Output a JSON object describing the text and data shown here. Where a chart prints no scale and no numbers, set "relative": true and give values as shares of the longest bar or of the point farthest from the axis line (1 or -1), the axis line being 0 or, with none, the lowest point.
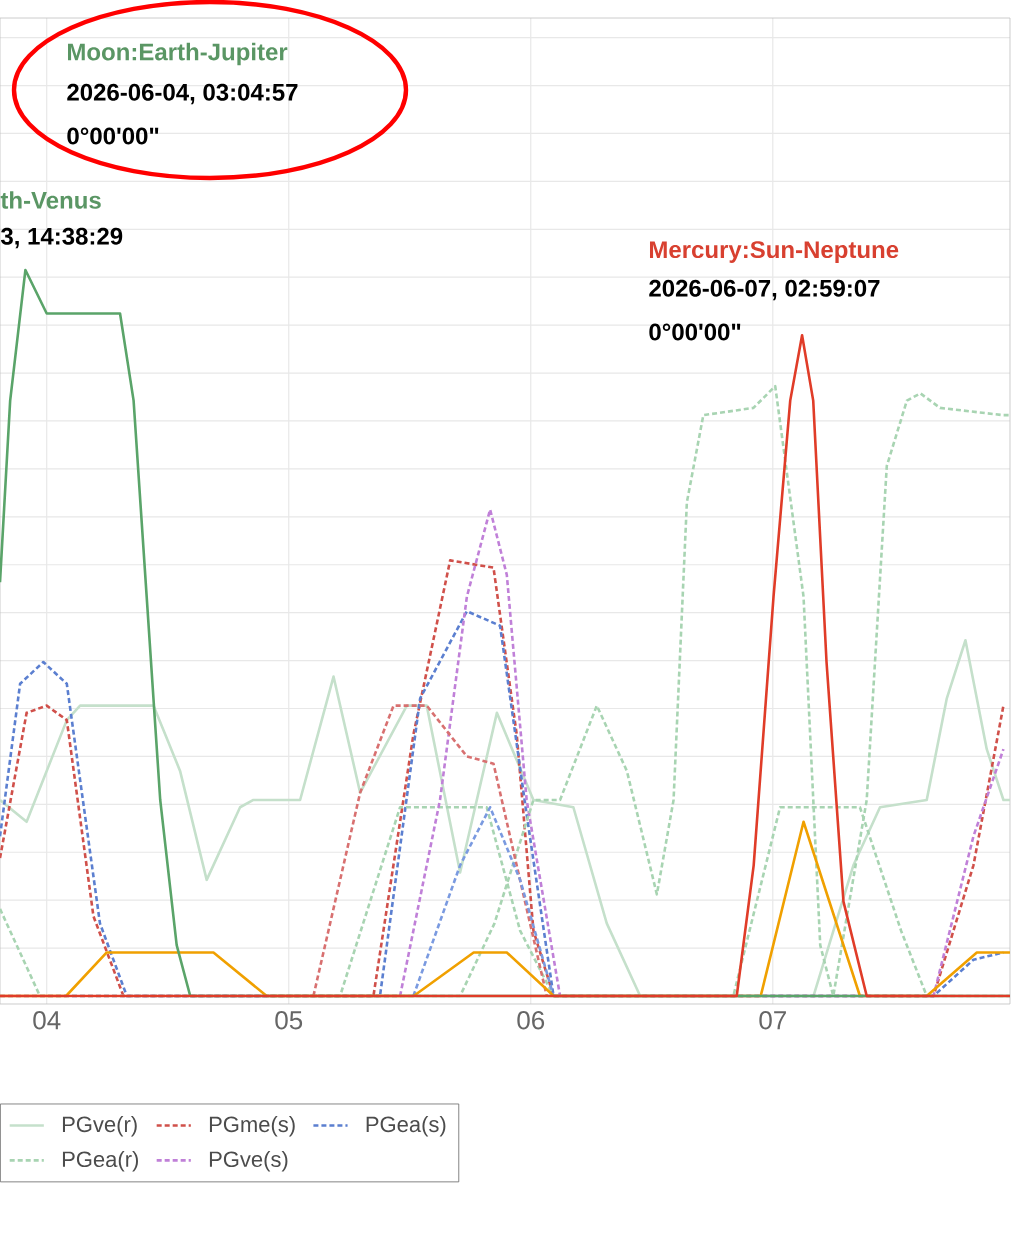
{
  "chart_data": {
    "type": "line",
    "relative": true,
    "xlim": [
      3.807,
      7.98
    ],
    "xticks": [
      {
        "value": 4,
        "label": "04"
      },
      {
        "value": 5,
        "label": "05"
      },
      {
        "value": 6,
        "label": "06"
      },
      {
        "value": 7,
        "label": "07"
      }
    ],
    "tick_labels": "x",
    "grid": true,
    "legend": "bottom left",
    "marker": "none",
    "annotations": [
      "Moon:Earth-Jupiter",
      "2026-06-04, 03:04:57",
      "0°00'00\"",
      "th-Venus",
      "3, 14:38:29",
      "Mercury:Sun-Neptune",
      "2026-06-07, 02:59:07",
      "0°00'00\""
    ],
    "series": [
      {
        "name": "PGve(r)",
        "color": "#c5e0cb",
        "line_style": "solid",
        "x": [
          3.807,
          3.917,
          4.083,
          4.138,
          4.441,
          4.551,
          4.661,
          4.799,
          4.854,
          5.047,
          5.185,
          5.295,
          5.488,
          5.57,
          5.708,
          5.86,
          6.011,
          6.176,
          6.314,
          6.452,
          7.168,
          7.333,
          7.443,
          7.636,
          7.719,
          7.796,
          7.884,
          7.953,
          7.98
        ],
        "values": [
          0.27,
          0.24,
          0.38,
          0.4,
          0.4,
          0.31,
          0.16,
          0.26,
          0.27,
          0.27,
          0.44,
          0.28,
          0.4,
          0.4,
          0.17,
          0.39,
          0.27,
          0.26,
          0.1,
          0,
          0,
          0.18,
          0.26,
          0.27,
          0.41,
          0.49,
          0.34,
          0.27,
          0.27
        ]
      },
      {
        "name": "PGme(s)",
        "color": "#d0504a",
        "line_style": "dashed",
        "x": [
          3.807,
          3.917,
          4.0,
          4.083,
          4.193,
          4.317,
          5.35,
          5.515,
          5.667,
          5.846,
          5.942,
          6.011,
          6.094,
          7.664,
          7.829,
          7.953
        ],
        "values": [
          0.19,
          0.39,
          0.4,
          0.38,
          0.11,
          0,
          0,
          0.36,
          0.6,
          0.59,
          0.36,
          0.09,
          0,
          0,
          0.18,
          0.4
        ]
      },
      {
        "name": "PGea(s)",
        "color": "#5b7fd0",
        "line_style": "dashed",
        "x": [
          3.807,
          3.89,
          3.986,
          4.083,
          4.22,
          4.331,
          5.377,
          5.543,
          5.736,
          5.873,
          5.983,
          6.094,
          7.664,
          7.829,
          7.953
        ],
        "values": [
          0.22,
          0.43,
          0.46,
          0.43,
          0.1,
          0,
          0,
          0.41,
          0.53,
          0.51,
          0.25,
          0,
          0,
          0.05,
          0.06
        ]
      },
      {
        "name": "PGea(r)",
        "color": "#a8d4b2",
        "line_style": "dashed",
        "x": [
          3.807,
          5.212,
          5.46,
          5.818,
          5.956,
          6.094,
          6.837,
          7.03,
          7.36,
          7.53,
          7.636,
          7.98
        ],
        "values": [
          0,
          0,
          0.26,
          0.26,
          0.09,
          0,
          0,
          0.26,
          0.26,
          0.09,
          0,
          0
        ]
      },
      {
        "name": "PGve(s)",
        "color": "#c080d8",
        "line_style": "dashed",
        "x": [
          3.807,
          5.46,
          5.625,
          5.736,
          5.832,
          5.901,
          5.983,
          6.121,
          7.664,
          7.829,
          7.953
        ],
        "values": [
          0,
          0,
          0.27,
          0.55,
          0.67,
          0.58,
          0.27,
          0,
          0,
          0.22,
          0.34
        ]
      },
      {
        "color": "#a8d4b2",
        "line_style": "dashed",
        "x": [
          3.807,
          3.972,
          5.708,
          5.85,
          6.011,
          6.121,
          6.273,
          6.397,
          6.521,
          6.59,
          6.645,
          6.713,
          6.92,
          7.01,
          7.127,
          7.196,
          7.25,
          7.388,
          7.471,
          7.554,
          7.61,
          7.691,
          7.953,
          7.98
        ],
        "values": [
          0.12,
          0,
          0,
          0.1,
          0.27,
          0.27,
          0.4,
          0.31,
          0.14,
          0.27,
          0.68,
          0.8,
          0.81,
          0.84,
          0.55,
          0.07,
          0,
          0.27,
          0.73,
          0.82,
          0.83,
          0.81,
          0.8,
          0.8
        ]
      },
      {
        "color": "#d87070",
        "line_style": "dashed",
        "x": [
          5.102,
          5.295,
          5.433,
          5.57,
          5.736,
          5.846,
          5.928,
          6.066
        ],
        "values": [
          0,
          0.28,
          0.4,
          0.4,
          0.33,
          0.32,
          0.2,
          0
        ]
      },
      {
        "color": "#7a9ae0",
        "line_style": "dashed",
        "x": [
          5.515,
          5.708,
          5.832,
          5.956,
          6.094
        ],
        "values": [
          0,
          0.18,
          0.26,
          0.16,
          0
        ]
      },
      {
        "color": "#f0a000",
        "line_style": "solid",
        "x": [
          3.807,
          4.08,
          4.248,
          4.689,
          4.909,
          5.516,
          5.764,
          5.901,
          6.095,
          6.95,
          7.127,
          7.36,
          7.636,
          7.843,
          7.98
        ],
        "values": [
          0,
          0,
          0.06,
          0.06,
          0,
          0,
          0.06,
          0.06,
          0,
          0,
          0.24,
          0,
          0,
          0.06,
          0.06
        ]
      },
      {
        "color": "#5aa469",
        "line_style": "solid",
        "x": [
          3.807,
          3.849,
          3.912,
          4.0,
          4.303,
          4.359,
          4.413,
          4.469,
          4.537,
          4.593,
          7.98
        ],
        "values": [
          0.57,
          0.82,
          1.0,
          0.94,
          0.94,
          0.82,
          0.55,
          0.27,
          0.07,
          0,
          0
        ]
      },
      {
        "color": "#e03c28",
        "line_style": "solid",
        "x": [
          3.807,
          6.851,
          6.921,
          7.003,
          7.072,
          7.121,
          7.167,
          7.222,
          7.292,
          7.388,
          7.98
        ],
        "values": [
          0,
          0,
          0.18,
          0.55,
          0.82,
          0.91,
          0.82,
          0.46,
          0.13,
          0,
          0
        ]
      }
    ]
  }
}
